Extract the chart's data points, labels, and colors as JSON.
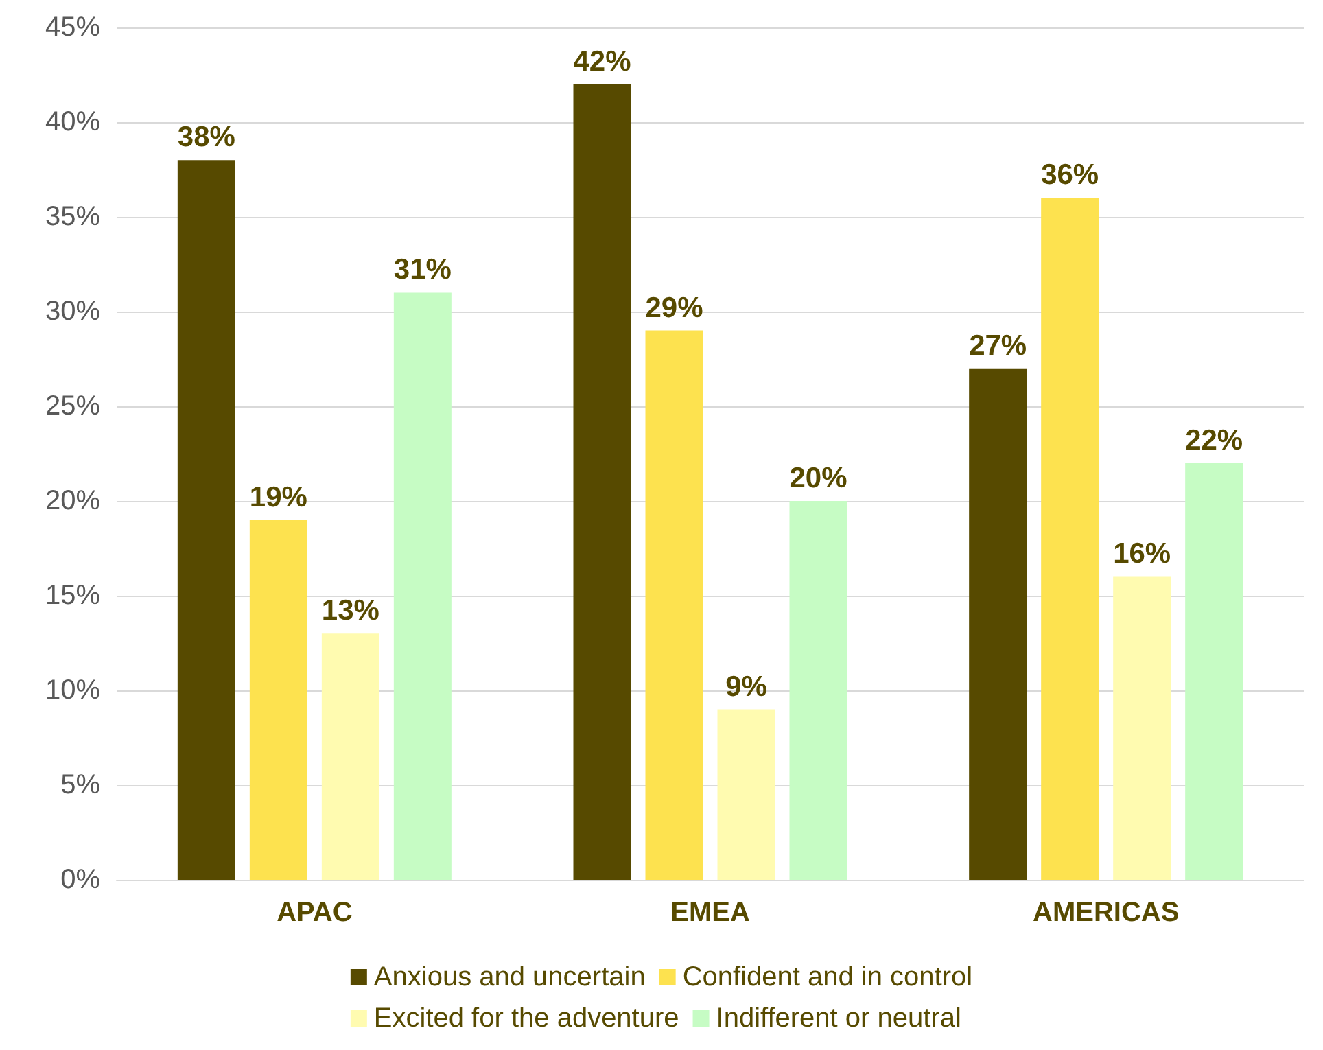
{
  "chart_data": {
    "type": "bar",
    "categories": [
      "APAC",
      "EMEA",
      "AMERICAS"
    ],
    "series": [
      {
        "name": "Anxious and uncertain",
        "color": "#574a00",
        "values": [
          38,
          42,
          27
        ],
        "value_labels": [
          "38%",
          "42%",
          "27%"
        ]
      },
      {
        "name": "Confident and in control",
        "color": "#fde24f",
        "values": [
          19,
          29,
          36
        ],
        "value_labels": [
          "19%",
          "29%",
          "36%"
        ]
      },
      {
        "name": "Excited for the adventure",
        "color": "#fffbb0",
        "values": [
          13,
          9,
          16
        ],
        "value_labels": [
          "13%",
          "9%",
          "16%"
        ]
      },
      {
        "name": "Indifferent or neutral",
        "color": "#c6fcc4",
        "values": [
          31,
          20,
          22
        ],
        "value_labels": [
          "31%",
          "20%",
          "22%"
        ]
      }
    ],
    "ylim": [
      0,
      45
    ],
    "yticks": [
      {
        "value": 0,
        "label": "0%"
      },
      {
        "value": 5,
        "label": "5%"
      },
      {
        "value": 10,
        "label": "10%"
      },
      {
        "value": 15,
        "label": "15%"
      },
      {
        "value": 20,
        "label": "20%"
      },
      {
        "value": 25,
        "label": "25%"
      },
      {
        "value": 30,
        "label": "30%"
      },
      {
        "value": 35,
        "label": "35%"
      },
      {
        "value": 40,
        "label": "40%"
      },
      {
        "value": 45,
        "label": "45%"
      }
    ],
    "grid": "y",
    "legend": "bottom"
  }
}
